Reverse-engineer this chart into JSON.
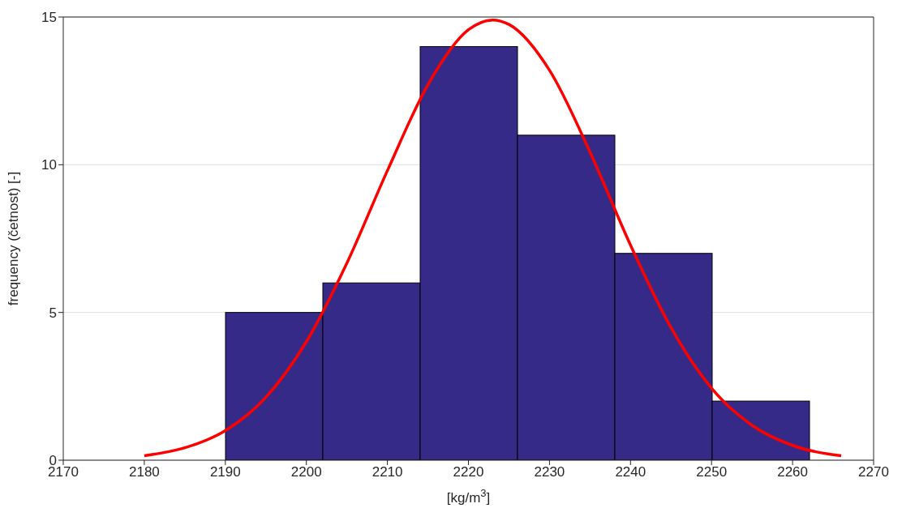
{
  "chart_data": {
    "type": "histogram",
    "xlabel": "[kg/m$^{3}$]",
    "ylabel": "frequency (četnost) [-]",
    "bins": [
      2190,
      2202,
      2214,
      2226,
      2238,
      2250,
      2262
    ],
    "values": [
      5,
      6,
      14,
      11,
      7,
      2
    ],
    "color": "#352a87",
    "series": [
      {
        "type": "line",
        "color": "#ff0000",
        "x": [
          2180,
          2185,
          2190,
          2195,
          2200,
          2205,
          2210,
          2215,
          2220,
          2223,
          2225,
          2230,
          2235,
          2240,
          2245,
          2250,
          2255,
          2260,
          2266
        ],
        "values": [
          0.15,
          0.42,
          1.0,
          2.13,
          4.01,
          6.67,
          9.8,
          12.71,
          14.57,
          14.9,
          14.75,
          13.2,
          10.43,
          7.28,
          4.49,
          2.44,
          1.18,
          0.5,
          0.15
        ]
      }
    ],
    "xlim": [
      2170,
      2270
    ],
    "xticks": [
      2170,
      2180,
      2190,
      2200,
      2210,
      2220,
      2230,
      2240,
      2250,
      2260,
      2270
    ],
    "ylim": [
      0,
      15
    ],
    "yticks": [
      0,
      5,
      10,
      15
    ],
    "grid": "y"
  }
}
